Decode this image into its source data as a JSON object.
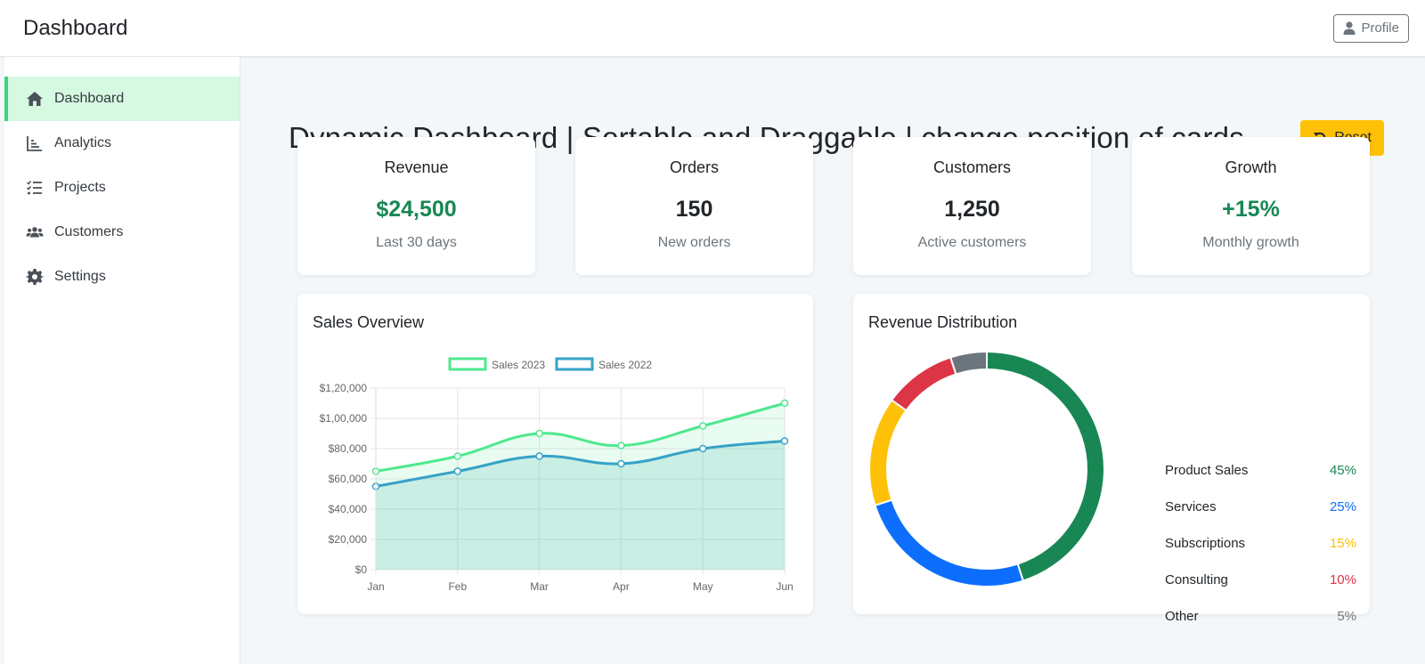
{
  "app": {
    "title": "Dashboard",
    "profile_label": "Profile"
  },
  "sidebar": {
    "items": [
      {
        "label": "Dashboard",
        "icon": "home-icon",
        "active": true
      },
      {
        "label": "Analytics",
        "icon": "chart-icon",
        "active": false
      },
      {
        "label": "Projects",
        "icon": "tasks-icon",
        "active": false
      },
      {
        "label": "Customers",
        "icon": "users-icon",
        "active": false
      },
      {
        "label": "Settings",
        "icon": "gear-icon",
        "active": false
      }
    ]
  },
  "main": {
    "title": "Dynamic Dashboard | Sortable and Draggable | change position of cards",
    "reset_label": "Reset",
    "stats": [
      {
        "title": "Revenue",
        "value": "$24,500",
        "sub": "Last 30 days",
        "color": "#198754"
      },
      {
        "title": "Orders",
        "value": "150",
        "sub": "New orders",
        "color": "#212529"
      },
      {
        "title": "Customers",
        "value": "1,250",
        "sub": "Active customers",
        "color": "#212529"
      },
      {
        "title": "Growth",
        "value": "+15%",
        "sub": "Monthly growth",
        "color": "#198754"
      }
    ],
    "sales_title": "Sales Overview",
    "distribution_title": "Revenue Distribution"
  },
  "chart_data": [
    {
      "type": "line",
      "title": "",
      "x": [
        "Jan",
        "Feb",
        "Mar",
        "Apr",
        "May",
        "Jun"
      ],
      "series": [
        {
          "name": "Sales 2023",
          "values": [
            65000,
            75000,
            90000,
            82000,
            95000,
            110000
          ],
          "color": "#4ee88e"
        },
        {
          "name": "Sales 2022",
          "values": [
            55000,
            65000,
            75000,
            70000,
            80000,
            85000
          ],
          "color": "#36a2c8"
        }
      ],
      "yticks": [
        "$0",
        "$20,000",
        "$40,000",
        "$60,000",
        "$80,000",
        "$1,00,000",
        "$1,20,000"
      ],
      "ylim": [
        0,
        120000
      ],
      "grid": true,
      "legend": "top"
    },
    {
      "type": "pie",
      "title": "",
      "categories": [
        "Product Sales",
        "Services",
        "Subscriptions",
        "Consulting",
        "Other"
      ],
      "values": [
        45,
        25,
        15,
        10,
        5
      ],
      "labels": [
        "45%",
        "25%",
        "15%",
        "10%",
        "5%"
      ],
      "colors": [
        "#198754",
        "#0d6efd",
        "#ffc107",
        "#dc3545",
        "#6c757d"
      ],
      "legend": "right"
    }
  ]
}
